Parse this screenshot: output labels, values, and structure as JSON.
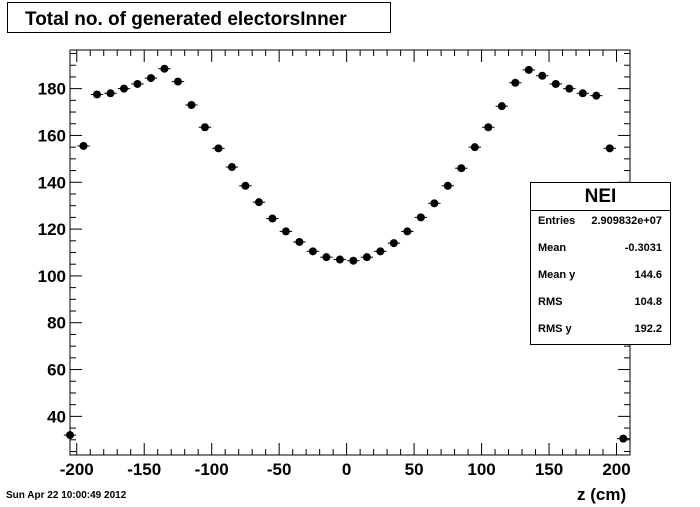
{
  "title": "Total no. of generated electorsInner",
  "stats": {
    "name": "NEI",
    "rows": [
      {
        "label": "Entries",
        "value": "2.909832e+07"
      },
      {
        "label": "Mean",
        "value": "-0.3031"
      },
      {
        "label": "Mean y",
        "value": "144.6"
      },
      {
        "label": "RMS",
        "value": "104.8"
      },
      {
        "label": "RMS y",
        "value": "192.2"
      }
    ]
  },
  "timestamp": "Sun Apr 22 10:00:49 2012",
  "chart_data": {
    "type": "scatter",
    "title": "Total no. of generated electorsInner",
    "xlabel": "z (cm)",
    "ylabel": "",
    "xlim": [
      -205,
      210
    ],
    "ylim": [
      23.5,
      196.5
    ],
    "grid": false,
    "x_ticks": [
      -200,
      -150,
      -100,
      -50,
      0,
      50,
      100,
      150,
      200
    ],
    "y_ticks": [
      40,
      60,
      80,
      100,
      120,
      140,
      160,
      180
    ],
    "x_tick_labels": [
      "-200",
      "-150",
      "-100",
      "-50",
      "0",
      "50",
      "100",
      "150",
      "200"
    ],
    "y_tick_labels": [
      "40",
      "60",
      "80",
      "100",
      "120",
      "140",
      "160",
      "180"
    ],
    "x_error": 4.6,
    "x": [
      -205,
      -195,
      -185,
      -175,
      -165,
      -155,
      -145,
      -135,
      -125,
      -115,
      -105,
      -95,
      -85,
      -75,
      -65,
      -55,
      -45,
      -35,
      -25,
      -15,
      -5,
      5,
      15,
      25,
      35,
      45,
      55,
      65,
      75,
      85,
      95,
      105,
      115,
      125,
      135,
      145,
      155,
      165,
      175,
      185,
      195,
      205
    ],
    "y": [
      32,
      155.5,
      177.5,
      178,
      180,
      182,
      184.5,
      188.5,
      183,
      173,
      163.5,
      154.5,
      146.5,
      138.5,
      131.5,
      124.5,
      119,
      114.5,
      110.5,
      108,
      107,
      106.5,
      108,
      110.5,
      114,
      119,
      125,
      131,
      138.5,
      146,
      155,
      163.5,
      172.5,
      182.5,
      188,
      185.5,
      182,
      180,
      178,
      177,
      154.5,
      30.5
    ]
  }
}
